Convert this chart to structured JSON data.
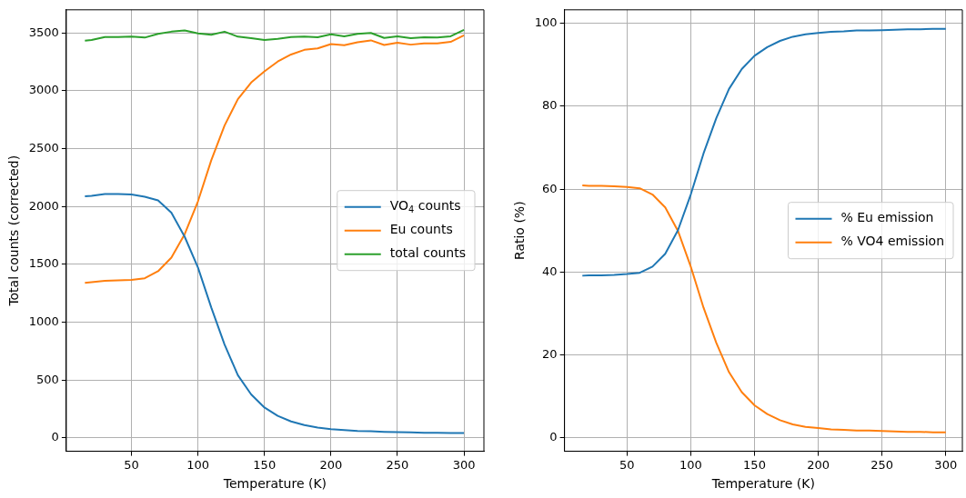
{
  "chart_data": [
    {
      "type": "line",
      "xlabel": "Temperature (K)",
      "ylabel": "Total counts (corrected)",
      "x": [
        15,
        20,
        30,
        40,
        50,
        60,
        70,
        80,
        90,
        100,
        110,
        120,
        130,
        140,
        150,
        160,
        170,
        180,
        190,
        200,
        210,
        220,
        230,
        240,
        250,
        260,
        270,
        280,
        290,
        300
      ],
      "series": [
        {
          "name": "VO$_{4}$ counts",
          "color": "#1f77b4",
          "values": [
            2088,
            2093,
            2109,
            2109,
            2104,
            2085,
            2053,
            1947,
            1739,
            1473,
            1128,
            808,
            542,
            377,
            263,
            191,
            143,
            111,
            90,
            77,
            69,
            61,
            58,
            53,
            50,
            48,
            45,
            45,
            42,
            42
          ]
        },
        {
          "name": "Eu counts",
          "color": "#ff7f0e",
          "values": [
            1340,
            1346,
            1359,
            1362,
            1367,
            1380,
            1441,
            1558,
            1761,
            2045,
            2400,
            2700,
            2928,
            3072,
            3168,
            3253,
            3314,
            3354,
            3367,
            3404,
            3394,
            3420,
            3436,
            3396,
            3415,
            3399,
            3410,
            3410,
            3423,
            3479
          ]
        },
        {
          "name": "total counts",
          "color": "#2ca02c",
          "values": [
            3433,
            3439,
            3465,
            3465,
            3468,
            3460,
            3492,
            3511,
            3521,
            3497,
            3484,
            3511,
            3468,
            3455,
            3439,
            3449,
            3465,
            3468,
            3463,
            3489,
            3471,
            3492,
            3500,
            3457,
            3471,
            3455,
            3463,
            3460,
            3471,
            3527
          ]
        }
      ],
      "xlim": [
        1,
        315
      ],
      "xticks": [
        50,
        100,
        150,
        200,
        250,
        300
      ],
      "ylim": [
        -115,
        3700
      ],
      "yticks": [
        0,
        500,
        1000,
        1500,
        2000,
        2500,
        3000,
        3500
      ],
      "grid": true,
      "legend": "center right"
    },
    {
      "type": "line",
      "xlabel": "Temperature (K)",
      "ylabel": "Ratio (%)",
      "x": [
        15,
        20,
        30,
        40,
        50,
        60,
        70,
        80,
        90,
        100,
        110,
        120,
        130,
        140,
        150,
        160,
        170,
        180,
        190,
        200,
        210,
        220,
        230,
        240,
        250,
        260,
        270,
        280,
        290,
        300
      ],
      "series": [
        {
          "name": "% Eu emission",
          "color": "#1f77b4",
          "values": [
            39.1,
            39.2,
            39.2,
            39.3,
            39.5,
            39.8,
            41.3,
            44.4,
            50.1,
            58.7,
            68.6,
            77.1,
            84.2,
            89.0,
            92.2,
            94.3,
            95.8,
            96.8,
            97.4,
            97.7,
            98.0,
            98.1,
            98.3,
            98.3,
            98.4,
            98.5,
            98.6,
            98.6,
            98.7,
            98.7
          ]
        },
        {
          "name": "% VO4 emission",
          "color": "#ff7f0e",
          "values": [
            60.9,
            60.8,
            60.8,
            60.7,
            60.5,
            60.2,
            58.7,
            55.6,
            49.9,
            41.3,
            31.4,
            22.9,
            15.8,
            11.0,
            7.8,
            5.7,
            4.2,
            3.2,
            2.6,
            2.3,
            2.0,
            1.9,
            1.7,
            1.7,
            1.6,
            1.5,
            1.4,
            1.4,
            1.3,
            1.3
          ]
        }
      ],
      "xlim": [
        1,
        313
      ],
      "xticks": [
        50,
        100,
        150,
        200,
        250,
        300
      ],
      "ylim": [
        -3.3,
        103.3
      ],
      "yticks": [
        0,
        20,
        40,
        60,
        80,
        100
      ],
      "grid": true,
      "legend": "center right"
    }
  ]
}
